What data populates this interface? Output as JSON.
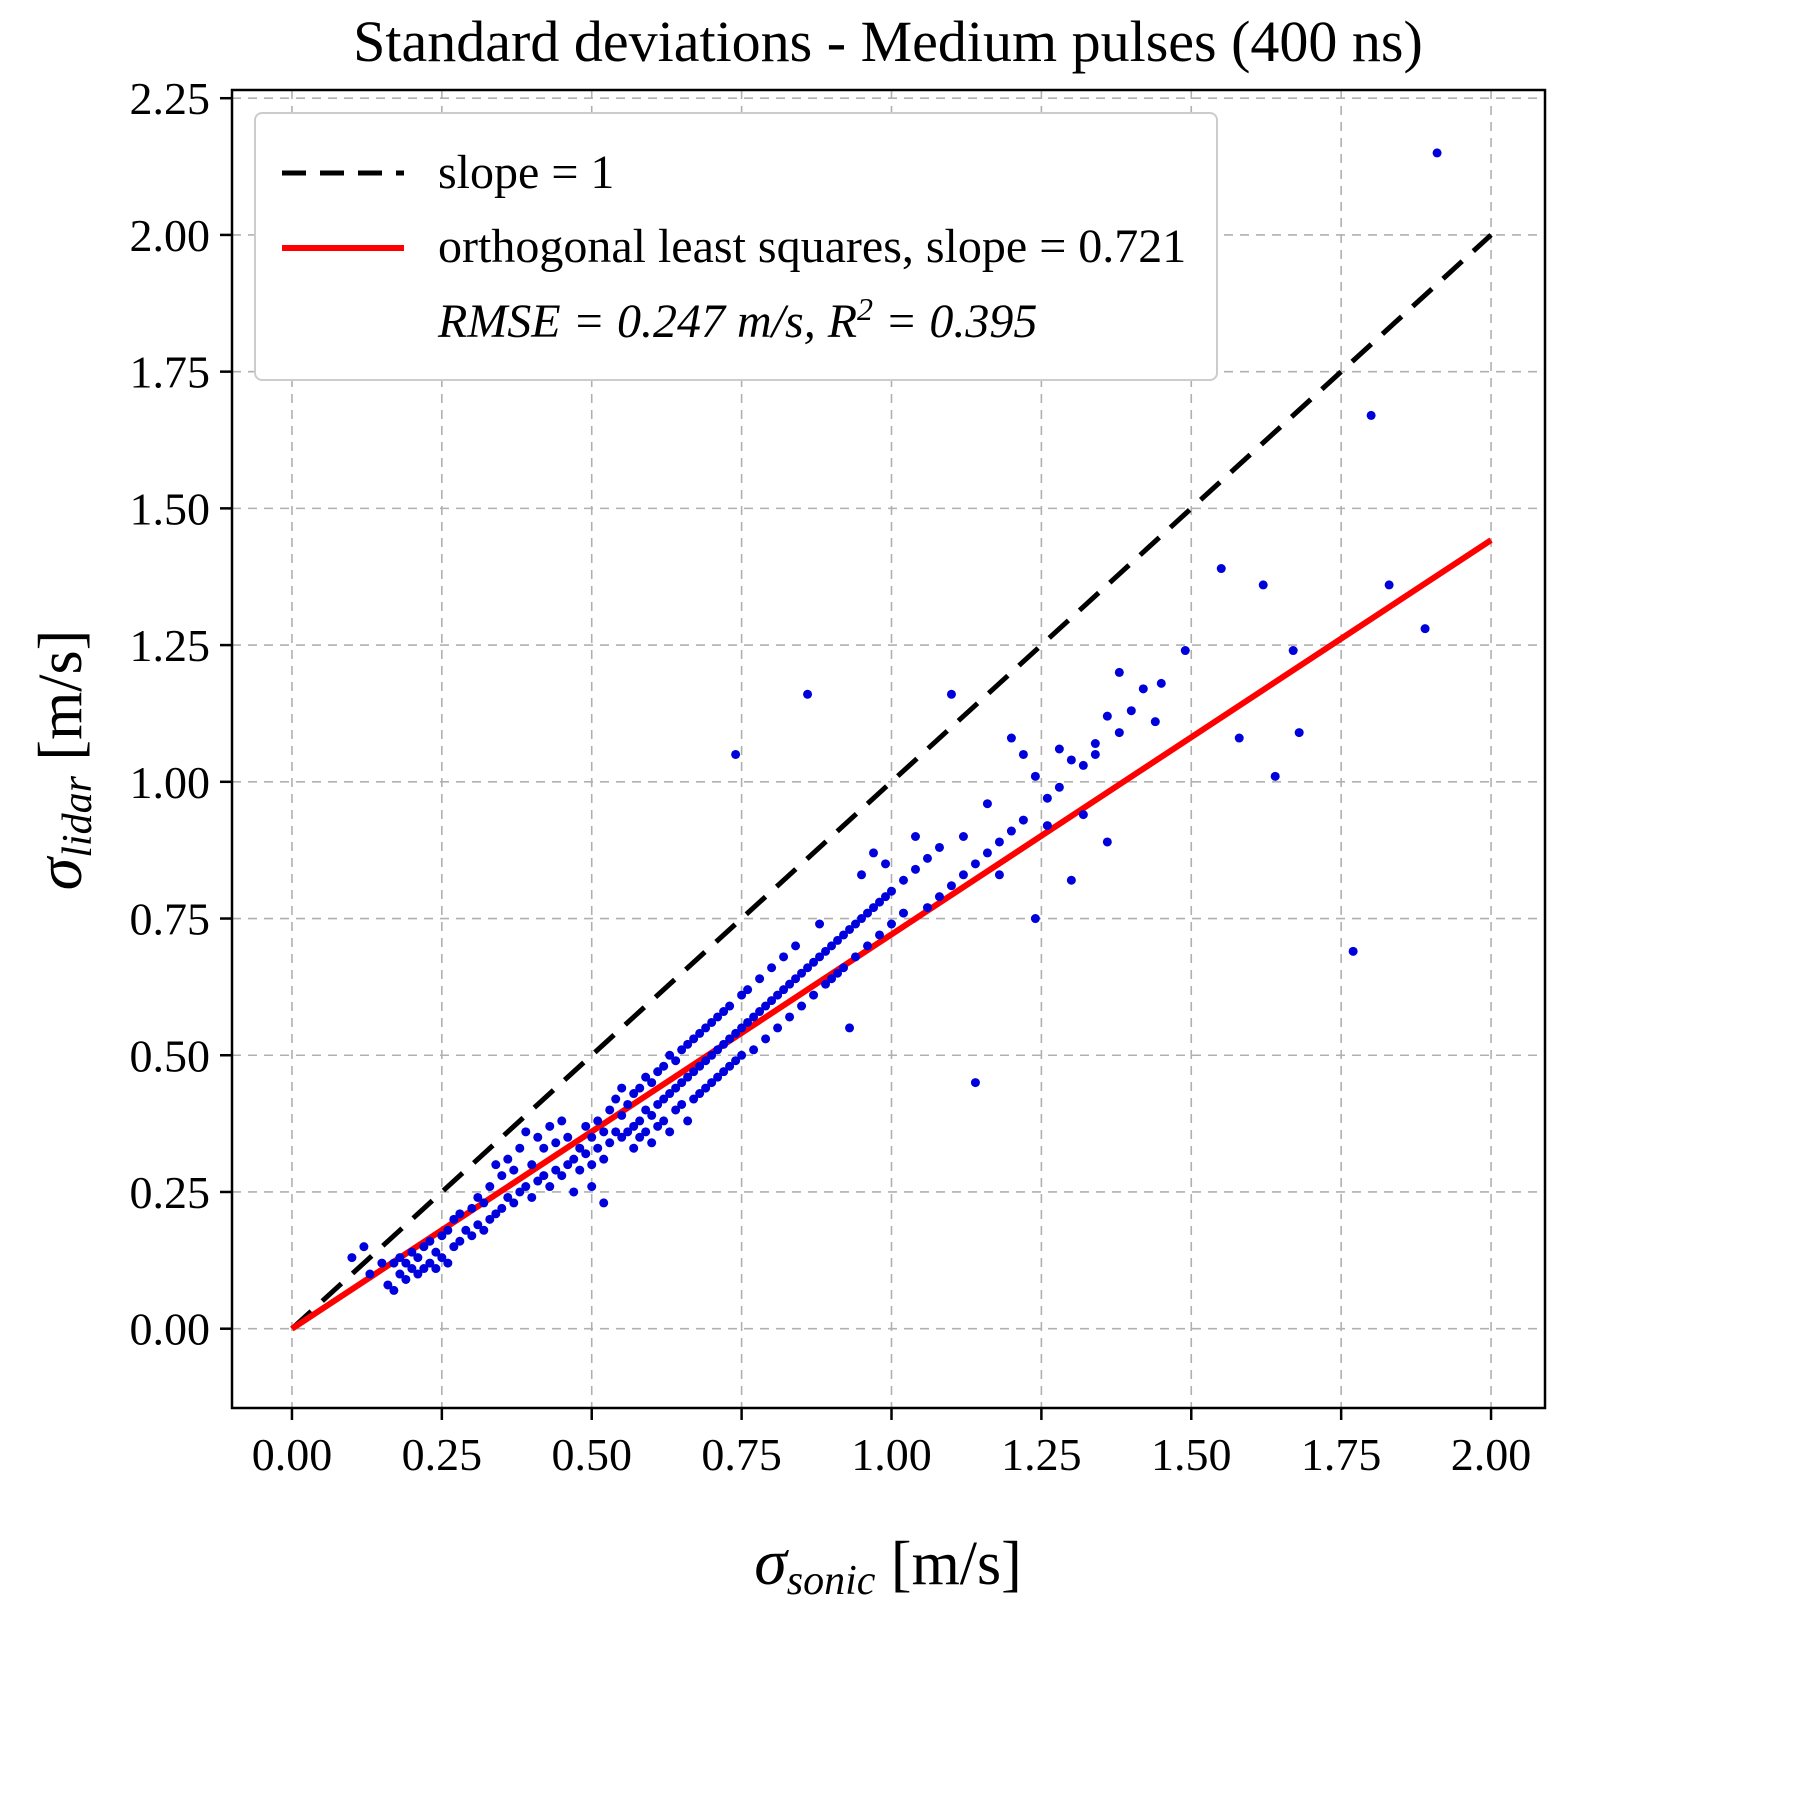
{
  "title": "Standard deviations - Medium pulses (400 ns)",
  "axes": {
    "x_sigma": "σ",
    "x_sub": "sonic",
    "x_unit": " [m/s]",
    "y_sigma": "σ",
    "y_sub": "lidar",
    "y_unit": " [m/s]"
  },
  "legend": {
    "row1_label": "slope = 1",
    "row2_label": "orthogonal least squares, slope = 0.721",
    "row3_prefix": "RMSE = 0.247 m/s,  R",
    "row3_sup": "2",
    "row3_suffix": " = 0.395"
  },
  "colors": {
    "points": "#0000dd",
    "fit_line": "#ff0000",
    "identity_line": "#000000",
    "grid": "#b0b0b0",
    "frame": "#000000"
  },
  "chart_data": {
    "type": "scatter",
    "title": "Standard deviations - Medium pulses (400 ns)",
    "xlabel": "sigma_sonic [m/s]",
    "ylabel": "sigma_lidar [m/s]",
    "xlim": [
      -0.1,
      2.09
    ],
    "ylim": [
      -0.145,
      2.265
    ],
    "grid": true,
    "legend_position": "upper left",
    "xticks": [
      0.0,
      0.25,
      0.5,
      0.75,
      1.0,
      1.25,
      1.5,
      1.75,
      2.0
    ],
    "xtick_labels": [
      "0.00",
      "0.25",
      "0.50",
      "0.75",
      "1.00",
      "1.25",
      "1.50",
      "1.75",
      "2.00"
    ],
    "yticks": [
      0.0,
      0.25,
      0.5,
      0.75,
      1.0,
      1.25,
      1.5,
      1.75,
      2.0,
      2.25
    ],
    "ytick_labels": [
      "0.00",
      "0.25",
      "0.50",
      "0.75",
      "1.00",
      "1.25",
      "1.50",
      "1.75",
      "2.00",
      "2.25"
    ],
    "lines": [
      {
        "name": "slope = 1",
        "style": "dashed",
        "color": "#000000",
        "x": [
          0.0,
          2.0
        ],
        "y": [
          0.0,
          2.0
        ],
        "slope": 1.0
      },
      {
        "name": "orthogonal least squares, slope = 0.721",
        "style": "solid",
        "color": "#ff0000",
        "x": [
          0.0,
          2.0
        ],
        "y": [
          0.0,
          1.442
        ],
        "slope": 0.721
      }
    ],
    "stats": {
      "rmse_m_s": 0.247,
      "r_squared": 0.395
    },
    "points": [
      [
        0.1,
        0.13
      ],
      [
        0.12,
        0.15
      ],
      [
        0.13,
        0.1
      ],
      [
        0.15,
        0.12
      ],
      [
        0.16,
        0.08
      ],
      [
        0.17,
        0.07
      ],
      [
        0.17,
        0.12
      ],
      [
        0.18,
        0.1
      ],
      [
        0.18,
        0.13
      ],
      [
        0.19,
        0.09
      ],
      [
        0.19,
        0.12
      ],
      [
        0.2,
        0.11
      ],
      [
        0.2,
        0.14
      ],
      [
        0.21,
        0.1
      ],
      [
        0.21,
        0.13
      ],
      [
        0.22,
        0.11
      ],
      [
        0.22,
        0.15
      ],
      [
        0.23,
        0.12
      ],
      [
        0.23,
        0.16
      ],
      [
        0.24,
        0.11
      ],
      [
        0.24,
        0.14
      ],
      [
        0.25,
        0.13
      ],
      [
        0.25,
        0.17
      ],
      [
        0.26,
        0.12
      ],
      [
        0.26,
        0.18
      ],
      [
        0.27,
        0.15
      ],
      [
        0.27,
        0.2
      ],
      [
        0.28,
        0.16
      ],
      [
        0.28,
        0.21
      ],
      [
        0.29,
        0.18
      ],
      [
        0.3,
        0.17
      ],
      [
        0.3,
        0.22
      ],
      [
        0.31,
        0.19
      ],
      [
        0.31,
        0.24
      ],
      [
        0.32,
        0.18
      ],
      [
        0.32,
        0.23
      ],
      [
        0.33,
        0.2
      ],
      [
        0.33,
        0.26
      ],
      [
        0.34,
        0.21
      ],
      [
        0.34,
        0.3
      ],
      [
        0.35,
        0.22
      ],
      [
        0.35,
        0.28
      ],
      [
        0.36,
        0.24
      ],
      [
        0.36,
        0.31
      ],
      [
        0.37,
        0.23
      ],
      [
        0.37,
        0.29
      ],
      [
        0.38,
        0.25
      ],
      [
        0.38,
        0.33
      ],
      [
        0.39,
        0.26
      ],
      [
        0.39,
        0.36
      ],
      [
        0.4,
        0.24
      ],
      [
        0.4,
        0.3
      ],
      [
        0.41,
        0.27
      ],
      [
        0.41,
        0.35
      ],
      [
        0.42,
        0.28
      ],
      [
        0.42,
        0.33
      ],
      [
        0.43,
        0.26
      ],
      [
        0.43,
        0.37
      ],
      [
        0.44,
        0.29
      ],
      [
        0.44,
        0.34
      ],
      [
        0.45,
        0.28
      ],
      [
        0.45,
        0.38
      ],
      [
        0.46,
        0.3
      ],
      [
        0.46,
        0.35
      ],
      [
        0.47,
        0.31
      ],
      [
        0.47,
        0.25
      ],
      [
        0.48,
        0.33
      ],
      [
        0.48,
        0.29
      ],
      [
        0.49,
        0.32
      ],
      [
        0.49,
        0.37
      ],
      [
        0.5,
        0.3
      ],
      [
        0.5,
        0.35
      ],
      [
        0.5,
        0.26
      ],
      [
        0.51,
        0.33
      ],
      [
        0.51,
        0.38
      ],
      [
        0.52,
        0.31
      ],
      [
        0.52,
        0.36
      ],
      [
        0.52,
        0.23
      ],
      [
        0.53,
        0.34
      ],
      [
        0.53,
        0.4
      ],
      [
        0.54,
        0.36
      ],
      [
        0.54,
        0.42
      ],
      [
        0.55,
        0.35
      ],
      [
        0.55,
        0.39
      ],
      [
        0.55,
        0.44
      ],
      [
        0.56,
        0.36
      ],
      [
        0.56,
        0.41
      ],
      [
        0.57,
        0.37
      ],
      [
        0.57,
        0.43
      ],
      [
        0.57,
        0.33
      ],
      [
        0.58,
        0.38
      ],
      [
        0.58,
        0.44
      ],
      [
        0.58,
        0.35
      ],
      [
        0.59,
        0.4
      ],
      [
        0.59,
        0.46
      ],
      [
        0.59,
        0.36
      ],
      [
        0.6,
        0.39
      ],
      [
        0.6,
        0.45
      ],
      [
        0.6,
        0.34
      ],
      [
        0.61,
        0.41
      ],
      [
        0.61,
        0.47
      ],
      [
        0.61,
        0.37
      ],
      [
        0.62,
        0.42
      ],
      [
        0.62,
        0.48
      ],
      [
        0.62,
        0.38
      ],
      [
        0.63,
        0.43
      ],
      [
        0.63,
        0.5
      ],
      [
        0.63,
        0.36
      ],
      [
        0.64,
        0.44
      ],
      [
        0.64,
        0.49
      ],
      [
        0.64,
        0.4
      ],
      [
        0.65,
        0.45
      ],
      [
        0.65,
        0.51
      ],
      [
        0.65,
        0.41
      ],
      [
        0.66,
        0.46
      ],
      [
        0.66,
        0.52
      ],
      [
        0.66,
        0.38
      ],
      [
        0.67,
        0.47
      ],
      [
        0.67,
        0.53
      ],
      [
        0.67,
        0.42
      ],
      [
        0.68,
        0.48
      ],
      [
        0.68,
        0.54
      ],
      [
        0.68,
        0.43
      ],
      [
        0.69,
        0.49
      ],
      [
        0.69,
        0.55
      ],
      [
        0.69,
        0.44
      ],
      [
        0.7,
        0.5
      ],
      [
        0.7,
        0.56
      ],
      [
        0.7,
        0.45
      ],
      [
        0.71,
        0.51
      ],
      [
        0.71,
        0.57
      ],
      [
        0.71,
        0.46
      ],
      [
        0.72,
        0.52
      ],
      [
        0.72,
        0.58
      ],
      [
        0.72,
        0.47
      ],
      [
        0.73,
        0.53
      ],
      [
        0.73,
        0.59
      ],
      [
        0.73,
        0.48
      ],
      [
        0.74,
        0.54
      ],
      [
        0.74,
        1.05
      ],
      [
        0.74,
        0.49
      ],
      [
        0.75,
        0.55
      ],
      [
        0.75,
        0.61
      ],
      [
        0.75,
        0.5
      ],
      [
        0.76,
        0.56
      ],
      [
        0.76,
        0.62
      ],
      [
        0.77,
        0.57
      ],
      [
        0.77,
        0.51
      ],
      [
        0.78,
        0.58
      ],
      [
        0.78,
        0.64
      ],
      [
        0.79,
        0.59
      ],
      [
        0.79,
        0.53
      ],
      [
        0.8,
        0.6
      ],
      [
        0.8,
        0.66
      ],
      [
        0.81,
        0.61
      ],
      [
        0.81,
        0.55
      ],
      [
        0.82,
        0.62
      ],
      [
        0.82,
        0.68
      ],
      [
        0.83,
        0.63
      ],
      [
        0.83,
        0.57
      ],
      [
        0.84,
        0.64
      ],
      [
        0.84,
        0.7
      ],
      [
        0.85,
        0.65
      ],
      [
        0.85,
        0.59
      ],
      [
        0.86,
        1.16
      ],
      [
        0.86,
        0.66
      ],
      [
        0.87,
        0.67
      ],
      [
        0.87,
        0.61
      ],
      [
        0.88,
        0.68
      ],
      [
        0.88,
        0.74
      ],
      [
        0.89,
        0.69
      ],
      [
        0.89,
        0.63
      ],
      [
        0.9,
        0.7
      ],
      [
        0.9,
        0.64
      ],
      [
        0.91,
        0.71
      ],
      [
        0.91,
        0.65
      ],
      [
        0.92,
        0.72
      ],
      [
        0.92,
        0.66
      ],
      [
        0.93,
        0.73
      ],
      [
        0.93,
        0.55
      ],
      [
        0.94,
        0.74
      ],
      [
        0.94,
        0.68
      ],
      [
        0.95,
        0.75
      ],
      [
        0.95,
        0.83
      ],
      [
        0.96,
        0.76
      ],
      [
        0.96,
        0.7
      ],
      [
        0.97,
        0.77
      ],
      [
        0.97,
        0.87
      ],
      [
        0.98,
        0.78
      ],
      [
        0.98,
        0.72
      ],
      [
        0.99,
        0.79
      ],
      [
        0.99,
        0.85
      ],
      [
        1.0,
        0.8
      ],
      [
        1.0,
        0.74
      ],
      [
        1.02,
        0.82
      ],
      [
        1.02,
        0.76
      ],
      [
        1.04,
        0.84
      ],
      [
        1.04,
        0.9
      ],
      [
        1.06,
        0.77
      ],
      [
        1.06,
        0.86
      ],
      [
        1.08,
        0.79
      ],
      [
        1.08,
        0.88
      ],
      [
        1.1,
        0.81
      ],
      [
        1.1,
        1.16
      ],
      [
        1.12,
        0.83
      ],
      [
        1.12,
        0.9
      ],
      [
        1.14,
        0.45
      ],
      [
        1.14,
        0.85
      ],
      [
        1.16,
        0.87
      ],
      [
        1.16,
        0.96
      ],
      [
        1.18,
        0.89
      ],
      [
        1.18,
        0.83
      ],
      [
        1.2,
        0.91
      ],
      [
        1.2,
        1.08
      ],
      [
        1.22,
        0.93
      ],
      [
        1.22,
        1.05
      ],
      [
        1.24,
        0.75
      ],
      [
        1.24,
        1.01
      ],
      [
        1.26,
        0.97
      ],
      [
        1.26,
        0.92
      ],
      [
        1.28,
        0.99
      ],
      [
        1.28,
        1.06
      ],
      [
        1.3,
        0.82
      ],
      [
        1.3,
        1.04
      ],
      [
        1.32,
        1.03
      ],
      [
        1.32,
        0.94
      ],
      [
        1.34,
        1.05
      ],
      [
        1.34,
        1.07
      ],
      [
        1.36,
        1.12
      ],
      [
        1.36,
        0.89
      ],
      [
        1.38,
        1.2
      ],
      [
        1.38,
        1.09
      ],
      [
        1.4,
        1.13
      ],
      [
        1.42,
        1.17
      ],
      [
        1.44,
        1.11
      ],
      [
        1.45,
        1.18
      ],
      [
        1.49,
        1.24
      ],
      [
        1.55,
        1.39
      ],
      [
        1.58,
        1.08
      ],
      [
        1.62,
        1.36
      ],
      [
        1.64,
        1.01
      ],
      [
        1.67,
        1.24
      ],
      [
        1.68,
        1.09
      ],
      [
        1.77,
        0.69
      ],
      [
        1.8,
        1.67
      ],
      [
        1.83,
        1.36
      ],
      [
        1.89,
        1.28
      ],
      [
        1.91,
        2.15
      ]
    ]
  }
}
